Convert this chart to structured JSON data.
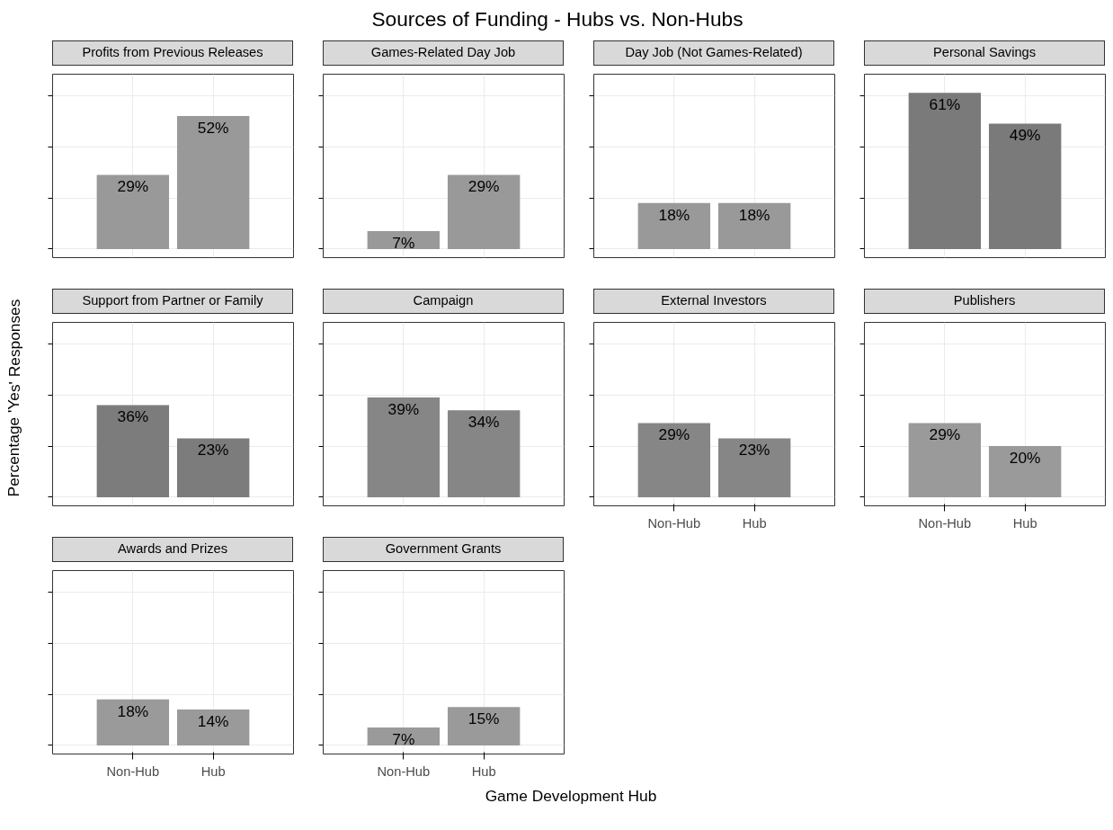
{
  "chart_data": [
    {
      "type": "bar",
      "title": "Profits from Previous Releases",
      "categories": [
        null,
        null
      ],
      "values": [
        29,
        52
      ],
      "value_labels": [
        "29%",
        "52%"
      ],
      "color": "#999999",
      "grid": true,
      "tick_labels": false
    },
    {
      "type": "bar",
      "title": "Games-Related Day Job",
      "categories": [
        null,
        null
      ],
      "values": [
        7,
        29
      ],
      "value_labels": [
        "7%",
        "29%"
      ],
      "color": "#999999",
      "grid": true,
      "tick_labels": false
    },
    {
      "type": "bar",
      "title": "Day Job (Not Games-Related)",
      "categories": [
        null,
        null
      ],
      "values": [
        18,
        18
      ],
      "value_labels": [
        "18%",
        "18%"
      ],
      "color": "#999999",
      "grid": true,
      "tick_labels": false
    },
    {
      "type": "bar",
      "title": "Personal Savings",
      "categories": [
        null,
        null
      ],
      "values": [
        61,
        49
      ],
      "value_labels": [
        "61%",
        "49%"
      ],
      "color": "#7a7a7a",
      "grid": true,
      "tick_labels": false
    },
    {
      "type": "bar",
      "title": "Support from Partner or Family",
      "categories": [
        null,
        null
      ],
      "values": [
        36,
        23
      ],
      "value_labels": [
        "36%",
        "23%"
      ],
      "color": "#7c7c7c",
      "grid": true,
      "tick_labels": false
    },
    {
      "type": "bar",
      "title": "Campaign",
      "categories": [
        null,
        null
      ],
      "values": [
        39,
        34
      ],
      "value_labels": [
        "39%",
        "34%"
      ],
      "color": "#868686",
      "grid": true,
      "tick_labels": false
    },
    {
      "type": "bar",
      "title": "External Investors",
      "categories": [
        "Non-Hub",
        "Hub"
      ],
      "values": [
        29,
        23
      ],
      "value_labels": [
        "29%",
        "23%"
      ],
      "color": "#868686",
      "grid": true,
      "tick_labels": "x"
    },
    {
      "type": "bar",
      "title": "Publishers",
      "categories": [
        "Non-Hub",
        "Hub"
      ],
      "values": [
        29,
        20
      ],
      "value_labels": [
        "29%",
        "20%"
      ],
      "color": "#9a9a9a",
      "grid": true,
      "tick_labels": "x"
    },
    {
      "type": "bar",
      "title": "Awards and Prizes",
      "categories": [
        "Non-Hub",
        "Hub"
      ],
      "values": [
        18,
        14
      ],
      "value_labels": [
        "18%",
        "14%"
      ],
      "color": "#9a9a9a",
      "grid": true,
      "tick_labels": "x"
    },
    {
      "type": "bar",
      "title": "Government Grants",
      "categories": [
        "Non-Hub",
        "Hub"
      ],
      "values": [
        7,
        15
      ],
      "value_labels": [
        "7%",
        "15%"
      ],
      "color": "#9a9a9a",
      "grid": true,
      "tick_labels": "x"
    },
    {
      "type": "other",
      "title": "Sources of Funding - Hubs vs. Non-Hubs",
      "xlabel": "Game Development Hub",
      "ylabel": "Percentage 'Yes' Responses"
    }
  ]
}
